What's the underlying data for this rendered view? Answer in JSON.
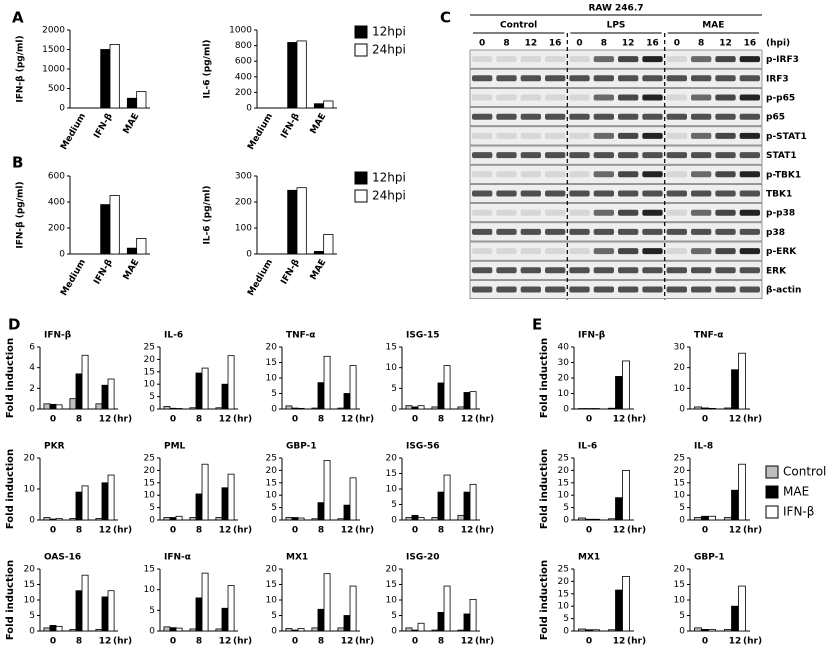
{
  "panel_labels": [
    "A",
    "B",
    "C",
    "D",
    "E"
  ],
  "blot": {
    "title": "RAW 246.7",
    "groups": [
      "Control",
      "LPS",
      "MAE"
    ],
    "timepoints": [
      "0",
      "8",
      "12",
      "16"
    ],
    "unit": "(hpi)",
    "proteins": [
      "p-IRF3",
      "IRF3",
      "p-p65",
      "p65",
      "p-STAT1",
      "STAT1",
      "p-TBK1",
      "TBK1",
      "p-p38",
      "p38",
      "p-ERK",
      "ERK",
      "β-actin"
    ]
  },
  "chart_data": [
    {
      "type": "bar",
      "ylabel": "IFN-β (pg/ml)",
      "categories": [
        "Medium",
        "IFN-β",
        "MAE"
      ],
      "ylim": [
        0,
        2000
      ],
      "yticks": [
        0,
        500,
        1000,
        1500,
        2000
      ],
      "series": [
        {
          "color": "#000000",
          "values": [
            0,
            1500,
            250
          ]
        },
        {
          "color": "#ffffff",
          "values": [
            0,
            1630,
            420
          ]
        }
      ]
    },
    {
      "type": "bar",
      "ylabel": "IL-6 (pg/ml)",
      "categories": [
        "Medium",
        "IFN-β",
        "MAE"
      ],
      "ylim": [
        0,
        1000
      ],
      "yticks": [
        0,
        200,
        400,
        600,
        800,
        1000
      ],
      "legend": "right",
      "series": [
        {
          "name": "12hpi",
          "color": "#000000",
          "values": [
            0,
            840,
            55
          ]
        },
        {
          "name": "24hpi",
          "color": "#ffffff",
          "values": [
            0,
            860,
            90
          ]
        }
      ]
    },
    {
      "type": "bar",
      "ylabel": "IFN-β (pg/ml)",
      "categories": [
        "Medium",
        "IFN-β",
        "MAE"
      ],
      "ylim": [
        0,
        600
      ],
      "yticks": [
        0,
        200,
        400,
        600
      ],
      "series": [
        {
          "color": "#000000",
          "values": [
            0,
            380,
            45
          ]
        },
        {
          "color": "#ffffff",
          "values": [
            0,
            450,
            120
          ]
        }
      ]
    },
    {
      "type": "bar",
      "ylabel": "IL-6 (pg/ml)",
      "categories": [
        "Medium",
        "IFN-β",
        "MAE"
      ],
      "ylim": [
        0,
        300
      ],
      "yticks": [
        0,
        100,
        200,
        300
      ],
      "legend": "right",
      "series": [
        {
          "name": "12hpi",
          "color": "#000000",
          "values": [
            0,
            245,
            10
          ]
        },
        {
          "name": "24hpi",
          "color": "#ffffff",
          "values": [
            0,
            255,
            75
          ]
        }
      ]
    },
    {
      "type": "bar",
      "title": "IFN-β",
      "ylabel": "Fold induction",
      "categories": [
        "0",
        "8",
        "12"
      ],
      "x_unit": "(hr)",
      "ylim": [
        0,
        6
      ],
      "yticks": [
        0,
        2,
        4,
        6
      ],
      "series": [
        {
          "color": "#bfbfbf",
          "values": [
            0.5,
            1.0,
            0.5
          ]
        },
        {
          "color": "#000000",
          "values": [
            0.45,
            3.4,
            2.3
          ]
        },
        {
          "color": "#ffffff",
          "values": [
            0.4,
            5.2,
            2.9
          ]
        }
      ]
    },
    {
      "type": "bar",
      "title": "IL-6",
      "categories": [
        "0",
        "8",
        "12"
      ],
      "x_unit": "(hr)",
      "ylim": [
        0,
        25
      ],
      "yticks": [
        0,
        5,
        10,
        15,
        20,
        25
      ],
      "series": [
        {
          "color": "#bfbfbf",
          "values": [
            1,
            0.5,
            0.5
          ]
        },
        {
          "color": "#000000",
          "values": [
            0.3,
            14.5,
            10
          ]
        },
        {
          "color": "#ffffff",
          "values": [
            0.2,
            16.5,
            21.5
          ]
        }
      ]
    },
    {
      "type": "bar",
      "title": "TNF-α",
      "categories": [
        "0",
        "8",
        "12"
      ],
      "x_unit": "(hr)",
      "ylim": [
        0,
        20
      ],
      "yticks": [
        0,
        5,
        10,
        15,
        20
      ],
      "series": [
        {
          "color": "#bfbfbf",
          "values": [
            1,
            0.3,
            0.3
          ]
        },
        {
          "color": "#000000",
          "values": [
            0.3,
            8.5,
            5
          ]
        },
        {
          "color": "#ffffff",
          "values": [
            0.2,
            17,
            14
          ]
        }
      ]
    },
    {
      "type": "bar",
      "title": "ISG-15",
      "categories": [
        "0",
        "8",
        "12"
      ],
      "x_unit": "(hr)",
      "ylim": [
        0,
        15
      ],
      "yticks": [
        0,
        5,
        10,
        15
      ],
      "series": [
        {
          "color": "#bfbfbf",
          "values": [
            0.8,
            0.5,
            0.5
          ]
        },
        {
          "color": "#000000",
          "values": [
            0.5,
            6.3,
            4
          ]
        },
        {
          "color": "#ffffff",
          "values": [
            0.8,
            10.5,
            4.2
          ]
        }
      ]
    },
    {
      "type": "bar",
      "title": "PKR",
      "ylabel": "Fold induction",
      "categories": [
        "0",
        "8",
        "12"
      ],
      "x_unit": "(hr)",
      "ylim": [
        0,
        20
      ],
      "yticks": [
        0,
        10,
        20
      ],
      "series": [
        {
          "color": "#bfbfbf",
          "values": [
            0.8,
            0.5,
            0.5
          ]
        },
        {
          "color": "#000000",
          "values": [
            0.3,
            9,
            12
          ]
        },
        {
          "color": "#ffffff",
          "values": [
            0.5,
            11,
            14.5
          ]
        }
      ]
    },
    {
      "type": "bar",
      "title": "PML",
      "categories": [
        "0",
        "8",
        "12"
      ],
      "x_unit": "(hr)",
      "ylim": [
        0,
        25
      ],
      "yticks": [
        0,
        5,
        10,
        15,
        20,
        25
      ],
      "series": [
        {
          "color": "#bfbfbf",
          "values": [
            1,
            1,
            1
          ]
        },
        {
          "color": "#000000",
          "values": [
            1,
            10.5,
            13
          ]
        },
        {
          "color": "#ffffff",
          "values": [
            1.5,
            22.5,
            18.5
          ]
        }
      ]
    },
    {
      "type": "bar",
      "title": "GBP-1",
      "categories": [
        "0",
        "8",
        "12"
      ],
      "x_unit": "(hr)",
      "ylim": [
        0,
        25
      ],
      "yticks": [
        0,
        5,
        10,
        15,
        20,
        25
      ],
      "series": [
        {
          "color": "#bfbfbf",
          "values": [
            1,
            0.5,
            0.5
          ]
        },
        {
          "color": "#000000",
          "values": [
            1,
            7,
            6
          ]
        },
        {
          "color": "#ffffff",
          "values": [
            0.8,
            24,
            17
          ]
        }
      ]
    },
    {
      "type": "bar",
      "title": "ISG-56",
      "categories": [
        "0",
        "8",
        "12"
      ],
      "x_unit": "(hr)",
      "ylim": [
        0,
        20
      ],
      "yticks": [
        0,
        5,
        10,
        15,
        20
      ],
      "series": [
        {
          "color": "#bfbfbf",
          "values": [
            0.8,
            0.8,
            1.5
          ]
        },
        {
          "color": "#000000",
          "values": [
            1.5,
            9,
            9
          ]
        },
        {
          "color": "#ffffff",
          "values": [
            0.8,
            14.5,
            11.5
          ]
        }
      ]
    },
    {
      "type": "bar",
      "title": "OAS-16",
      "ylabel": "Fold induction",
      "categories": [
        "0",
        "8",
        "12"
      ],
      "x_unit": "(hr)",
      "ylim": [
        0,
        20
      ],
      "yticks": [
        0,
        5,
        10,
        15,
        20
      ],
      "series": [
        {
          "color": "#bfbfbf",
          "values": [
            1,
            0.5,
            0.5
          ]
        },
        {
          "color": "#000000",
          "values": [
            1.8,
            13,
            11
          ]
        },
        {
          "color": "#ffffff",
          "values": [
            1.5,
            18,
            13
          ]
        }
      ]
    },
    {
      "type": "bar",
      "title": "IFN-α",
      "categories": [
        "0",
        "8",
        "12"
      ],
      "x_unit": "(hr)",
      "ylim": [
        0,
        15
      ],
      "yticks": [
        0,
        5,
        10,
        15
      ],
      "series": [
        {
          "color": "#bfbfbf",
          "values": [
            1,
            0.5,
            0.5
          ]
        },
        {
          "color": "#000000",
          "values": [
            0.8,
            8,
            5.5
          ]
        },
        {
          "color": "#ffffff",
          "values": [
            0.7,
            14,
            11
          ]
        }
      ]
    },
    {
      "type": "bar",
      "title": "MX1",
      "categories": [
        "0",
        "8",
        "12"
      ],
      "x_unit": "(hr)",
      "ylim": [
        0,
        20
      ],
      "yticks": [
        0,
        5,
        10,
        15,
        20
      ],
      "series": [
        {
          "color": "#bfbfbf",
          "values": [
            0.8,
            1,
            1
          ]
        },
        {
          "color": "#000000",
          "values": [
            0.3,
            7,
            5
          ]
        },
        {
          "color": "#ffffff",
          "values": [
            0.8,
            18.5,
            14.5
          ]
        }
      ]
    },
    {
      "type": "bar",
      "title": "ISG-20",
      "categories": [
        "0",
        "8",
        "12"
      ],
      "x_unit": "(hr)",
      "ylim": [
        0,
        20
      ],
      "yticks": [
        0,
        5,
        10,
        15,
        20
      ],
      "series": [
        {
          "color": "#bfbfbf",
          "values": [
            1,
            0.3,
            0.3
          ]
        },
        {
          "color": "#000000",
          "values": [
            0.3,
            6,
            5.5
          ]
        },
        {
          "color": "#ffffff",
          "values": [
            2.5,
            14.5,
            10.2
          ]
        }
      ]
    },
    {
      "type": "bar",
      "title": "IFN-β",
      "ylabel": "Fold induction",
      "categories": [
        "0",
        "12"
      ],
      "x_unit": "(hr)",
      "ylim": [
        0,
        40
      ],
      "yticks": [
        0,
        10,
        20,
        30,
        40
      ],
      "series": [
        {
          "color": "#bfbfbf",
          "values": [
            0.3,
            0.5
          ]
        },
        {
          "color": "#000000",
          "values": [
            0.3,
            21
          ]
        },
        {
          "color": "#ffffff",
          "values": [
            0.3,
            31
          ]
        }
      ]
    },
    {
      "type": "bar",
      "title": "TNF-α",
      "categories": [
        "0",
        "12"
      ],
      "x_unit": "(hr)",
      "ylim": [
        0,
        30
      ],
      "yticks": [
        0,
        10,
        20,
        30
      ],
      "series": [
        {
          "color": "#bfbfbf",
          "values": [
            1,
            0.5
          ]
        },
        {
          "color": "#000000",
          "values": [
            0.5,
            19
          ]
        },
        {
          "color": "#ffffff",
          "values": [
            0.3,
            27
          ]
        }
      ]
    },
    {
      "type": "bar",
      "title": "IL-6",
      "ylabel": "Fold induction",
      "categories": [
        "0",
        "12"
      ],
      "x_unit": "(hr)",
      "ylim": [
        0,
        25
      ],
      "yticks": [
        0,
        5,
        10,
        15,
        20,
        25
      ],
      "series": [
        {
          "color": "#bfbfbf",
          "values": [
            0.8,
            0.5
          ]
        },
        {
          "color": "#000000",
          "values": [
            0.3,
            9
          ]
        },
        {
          "color": "#ffffff",
          "values": [
            0.3,
            20
          ]
        }
      ]
    },
    {
      "type": "bar",
      "title": "IL-8",
      "categories": [
        "0",
        "12"
      ],
      "x_unit": "(hr)",
      "ylim": [
        0,
        25
      ],
      "yticks": [
        0,
        5,
        10,
        15,
        20,
        25
      ],
      "legend": "right",
      "series": [
        {
          "name": "Control",
          "color": "#bfbfbf",
          "values": [
            1,
            1
          ]
        },
        {
          "name": "MAE",
          "color": "#000000",
          "values": [
            1.5,
            12
          ]
        },
        {
          "name": "IFN-β",
          "color": "#ffffff",
          "values": [
            1.5,
            22.5
          ]
        }
      ]
    },
    {
      "type": "bar",
      "title": "MX1",
      "ylabel": "Fold induction",
      "categories": [
        "0",
        "12"
      ],
      "x_unit": "(hr)",
      "ylim": [
        0,
        25
      ],
      "yticks": [
        0,
        5,
        10,
        15,
        20,
        25
      ],
      "series": [
        {
          "color": "#bfbfbf",
          "values": [
            0.8,
            0.5
          ]
        },
        {
          "color": "#000000",
          "values": [
            0.5,
            16.5
          ]
        },
        {
          "color": "#ffffff",
          "values": [
            0.5,
            22
          ]
        }
      ]
    },
    {
      "type": "bar",
      "title": "GBP-1",
      "categories": [
        "0",
        "12"
      ],
      "x_unit": "(hr)",
      "ylim": [
        0,
        20
      ],
      "yticks": [
        0,
        5,
        10,
        15,
        20
      ],
      "series": [
        {
          "color": "#bfbfbf",
          "values": [
            1,
            0.5
          ]
        },
        {
          "color": "#000000",
          "values": [
            0.5,
            8
          ]
        },
        {
          "color": "#ffffff",
          "values": [
            0.5,
            14.5
          ]
        }
      ]
    }
  ]
}
